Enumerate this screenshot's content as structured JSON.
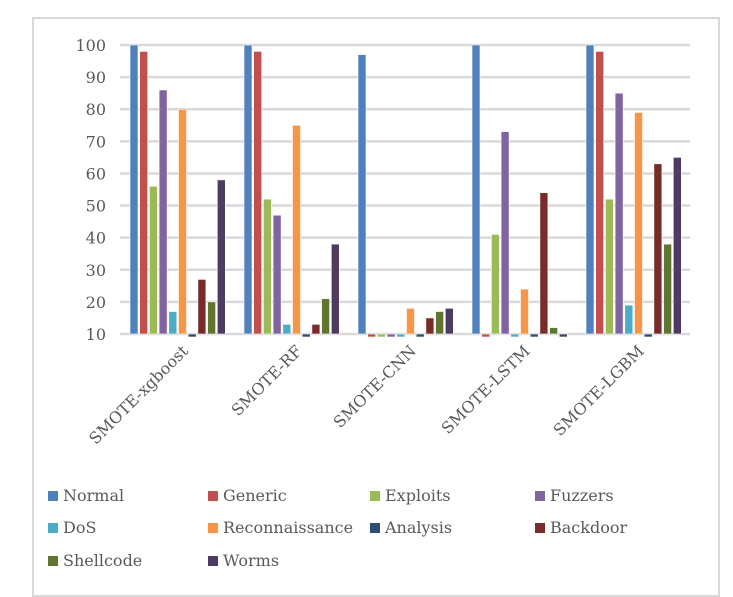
{
  "chart_data": {
    "type": "bar",
    "title": "",
    "xlabel": "",
    "ylabel": "",
    "ylim": [
      10,
      100
    ],
    "yticks": [
      10,
      20,
      30,
      40,
      50,
      60,
      70,
      80,
      90,
      100
    ],
    "grid": true,
    "legend_position": "bottom",
    "categories": [
      "SMOTE-xgboost",
      "SMOTE-RF",
      "SMOTE-CNN",
      "SMOTE-LSTM",
      "SMOTE-LGBM"
    ],
    "series": [
      {
        "name": "Normal",
        "color": "#4f81bd",
        "values": [
          100,
          100,
          97,
          100,
          100
        ]
      },
      {
        "name": "Generic",
        "color": "#c0504d",
        "values": [
          98,
          98,
          9.7,
          9.7,
          98
        ]
      },
      {
        "name": "Exploits",
        "color": "#9bbb59",
        "values": [
          56,
          52,
          9.7,
          41,
          52
        ]
      },
      {
        "name": "Fuzzers",
        "color": "#8064a2",
        "values": [
          86,
          47,
          9.7,
          73,
          85
        ]
      },
      {
        "name": "DoS",
        "color": "#4bacc6",
        "values": [
          17,
          13,
          9.7,
          9.7,
          19
        ]
      },
      {
        "name": "Reconnaissance",
        "color": "#f79646",
        "values": [
          80,
          75,
          18,
          24,
          79
        ]
      },
      {
        "name": "Analysis",
        "color": "#2c4d75",
        "values": [
          9.7,
          9.7,
          9.7,
          9.7,
          9.7
        ]
      },
      {
        "name": "Backdoor",
        "color": "#772c2a",
        "values": [
          27,
          13,
          15,
          54,
          63
        ]
      },
      {
        "name": "Shellcode",
        "color": "#5f7530",
        "values": [
          20,
          21,
          17,
          12,
          38
        ]
      },
      {
        "name": "Worms",
        "color": "#4d3b62",
        "values": [
          58,
          38,
          18,
          9.7,
          65
        ]
      }
    ]
  }
}
